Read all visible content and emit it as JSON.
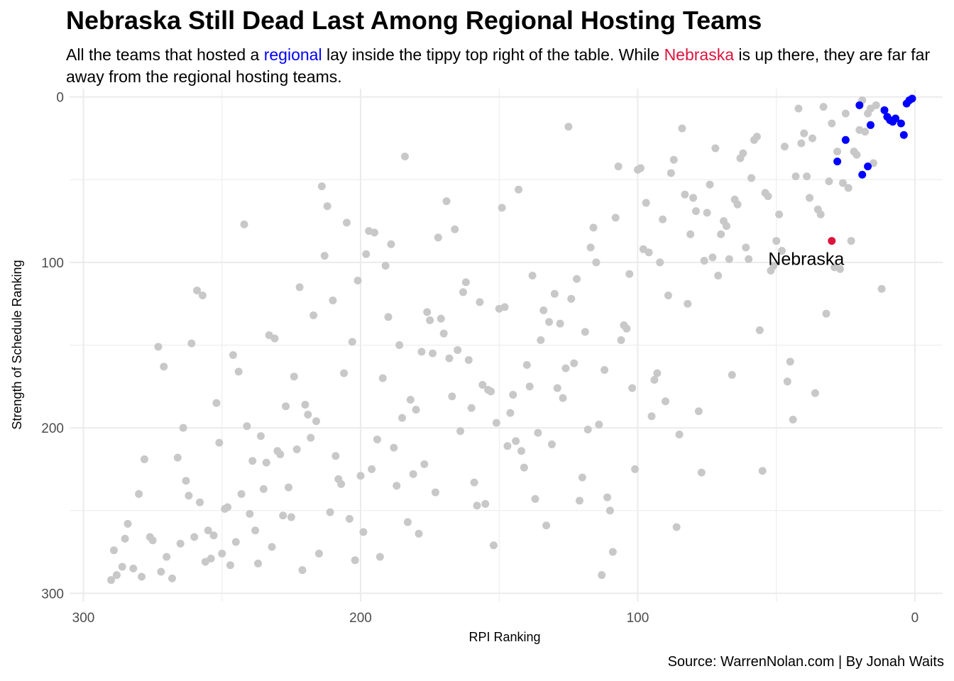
{
  "header": {
    "title": "Nebraska Still Dead Last Among Regional Hosting Teams",
    "subtitle_part1": "All the teams that hosted a ",
    "subtitle_highlight1": "regional",
    "subtitle_part2": " lay inside the tippy top right of the table. While ",
    "subtitle_highlight2": "Nebraska",
    "subtitle_part3": " is up there, they are far far away from the regional hosting teams."
  },
  "caption": "Source: WarrenNolan.com | By Jonah Waits",
  "colors": {
    "other": "#c8c8c8",
    "regional": "#0000ff",
    "nebraska": "#dc143c",
    "grid": "#ebebeb"
  },
  "chart_data": {
    "type": "scatter",
    "xlabel": "RPI Ranking",
    "ylabel": "Strength of Schedule Ranking",
    "x_reversed": true,
    "y_reversed": true,
    "xlim": [
      305,
      -10
    ],
    "ylim": [
      -5,
      305
    ],
    "x_ticks": [
      300,
      200,
      100,
      0
    ],
    "y_ticks": [
      0,
      100,
      200,
      300
    ],
    "grid": true,
    "annotation": {
      "text": "Nebraska",
      "x": 30,
      "y": 87
    },
    "series": [
      {
        "name": "Nebraska",
        "points": [
          [
            30,
            87
          ]
        ]
      },
      {
        "name": "regional",
        "points": [
          [
            1,
            1
          ],
          [
            2,
            2
          ],
          [
            3,
            4
          ],
          [
            5,
            16
          ],
          [
            4,
            23
          ],
          [
            7,
            13
          ],
          [
            8,
            15
          ],
          [
            9,
            14
          ],
          [
            10,
            12
          ],
          [
            11,
            8
          ],
          [
            16,
            17
          ],
          [
            17,
            42
          ],
          [
            19,
            47
          ],
          [
            20,
            5
          ],
          [
            25,
            26
          ],
          [
            28,
            39
          ]
        ]
      },
      {
        "points": [
          [
            290,
            292
          ],
          [
            289,
            274
          ],
          [
            288,
            289
          ],
          [
            286,
            284
          ],
          [
            285,
            267
          ],
          [
            284,
            258
          ],
          [
            282,
            285
          ],
          [
            280,
            240
          ],
          [
            279,
            290
          ],
          [
            278,
            219
          ],
          [
            276,
            266
          ],
          [
            275,
            268
          ],
          [
            273,
            151
          ],
          [
            272,
            287
          ],
          [
            271,
            163
          ],
          [
            270,
            278
          ],
          [
            268,
            291
          ],
          [
            266,
            218
          ],
          [
            265,
            270
          ],
          [
            264,
            200
          ],
          [
            263,
            232
          ],
          [
            262,
            241
          ],
          [
            261,
            149
          ],
          [
            260,
            266
          ],
          [
            259,
            117
          ],
          [
            258,
            245
          ],
          [
            257,
            120
          ],
          [
            256,
            281
          ],
          [
            255,
            262
          ],
          [
            254,
            279
          ],
          [
            253,
            265
          ],
          [
            252,
            185
          ],
          [
            251,
            209
          ],
          [
            250,
            276
          ],
          [
            249,
            249
          ],
          [
            248,
            248
          ],
          [
            247,
            283
          ],
          [
            246,
            156
          ],
          [
            245,
            269
          ],
          [
            244,
            166
          ],
          [
            243,
            240
          ],
          [
            242,
            77
          ],
          [
            241,
            199
          ],
          [
            240,
            252
          ],
          [
            239,
            220
          ],
          [
            238,
            262
          ],
          [
            237,
            282
          ],
          [
            236,
            205
          ],
          [
            235,
            237
          ],
          [
            234,
            221
          ],
          [
            233,
            144
          ],
          [
            232,
            272
          ],
          [
            231,
            146
          ],
          [
            230,
            214
          ],
          [
            229,
            216
          ],
          [
            228,
            253
          ],
          [
            227,
            187
          ],
          [
            226,
            236
          ],
          [
            225,
            254
          ],
          [
            224,
            169
          ],
          [
            223,
            213
          ],
          [
            222,
            115
          ],
          [
            221,
            286
          ],
          [
            220,
            186
          ],
          [
            219,
            192
          ],
          [
            218,
            206
          ],
          [
            217,
            132
          ],
          [
            216,
            196
          ],
          [
            215,
            276
          ],
          [
            214,
            54
          ],
          [
            213,
            96
          ],
          [
            212,
            66
          ],
          [
            211,
            251
          ],
          [
            210,
            123
          ],
          [
            209,
            217
          ],
          [
            208,
            231
          ],
          [
            207,
            234
          ],
          [
            206,
            167
          ],
          [
            205,
            76
          ],
          [
            204,
            255
          ],
          [
            203,
            148
          ],
          [
            202,
            280
          ],
          [
            201,
            111
          ],
          [
            200,
            229
          ],
          [
            199,
            263
          ],
          [
            198,
            95
          ],
          [
            197,
            81
          ],
          [
            196,
            225
          ],
          [
            195,
            82
          ],
          [
            194,
            207
          ],
          [
            193,
            278
          ],
          [
            192,
            170
          ],
          [
            191,
            102
          ],
          [
            190,
            133
          ],
          [
            189,
            89
          ],
          [
            188,
            212
          ],
          [
            187,
            235
          ],
          [
            186,
            150
          ],
          [
            185,
            194
          ],
          [
            184,
            36
          ],
          [
            183,
            257
          ],
          [
            182,
            183
          ],
          [
            181,
            228
          ],
          [
            180,
            189
          ],
          [
            179,
            264
          ],
          [
            178,
            154
          ],
          [
            177,
            222
          ],
          [
            176,
            130
          ],
          [
            175,
            135
          ],
          [
            174,
            155
          ],
          [
            173,
            239
          ],
          [
            172,
            85
          ],
          [
            171,
            134
          ],
          [
            170,
            143
          ],
          [
            169,
            63
          ],
          [
            168,
            158
          ],
          [
            167,
            181
          ],
          [
            166,
            80
          ],
          [
            165,
            153
          ],
          [
            164,
            202
          ],
          [
            163,
            118
          ],
          [
            162,
            112
          ],
          [
            161,
            159
          ],
          [
            160,
            188
          ],
          [
            159,
            233
          ],
          [
            158,
            247
          ],
          [
            157,
            124
          ],
          [
            156,
            174
          ],
          [
            155,
            246
          ],
          [
            154,
            177
          ],
          [
            153,
            178
          ],
          [
            152,
            271
          ],
          [
            151,
            197
          ],
          [
            150,
            128
          ],
          [
            149,
            67
          ],
          [
            148,
            127
          ],
          [
            147,
            211
          ],
          [
            146,
            191
          ],
          [
            145,
            180
          ],
          [
            144,
            208
          ],
          [
            143,
            56
          ],
          [
            142,
            214
          ],
          [
            141,
            224
          ],
          [
            140,
            162
          ],
          [
            139,
            175
          ],
          [
            138,
            108
          ],
          [
            137,
            243
          ],
          [
            136,
            203
          ],
          [
            135,
            147
          ],
          [
            134,
            129
          ],
          [
            133,
            259
          ],
          [
            132,
            136
          ],
          [
            131,
            210
          ],
          [
            130,
            119
          ],
          [
            129,
            176
          ],
          [
            128,
            137
          ],
          [
            127,
            182
          ],
          [
            126,
            164
          ],
          [
            125,
            18
          ],
          [
            124,
            122
          ],
          [
            123,
            161
          ],
          [
            122,
            110
          ],
          [
            121,
            244
          ],
          [
            120,
            230
          ],
          [
            119,
            142
          ],
          [
            118,
            201
          ],
          [
            117,
            91
          ],
          [
            116,
            79
          ],
          [
            115,
            100
          ],
          [
            114,
            198
          ],
          [
            113,
            289
          ],
          [
            112,
            165
          ],
          [
            111,
            242
          ],
          [
            110,
            250
          ],
          [
            109,
            275
          ],
          [
            108,
            73
          ],
          [
            107,
            42
          ],
          [
            106,
            147
          ],
          [
            105,
            138
          ],
          [
            104,
            140
          ],
          [
            103,
            107
          ],
          [
            102,
            176
          ],
          [
            101,
            225
          ],
          [
            100,
            44
          ],
          [
            99,
            43
          ],
          [
            98,
            92
          ],
          [
            97,
            64
          ],
          [
            96,
            94
          ],
          [
            95,
            193
          ],
          [
            94,
            171
          ],
          [
            93,
            167
          ],
          [
            92,
            100
          ],
          [
            91,
            74
          ],
          [
            90,
            184
          ],
          [
            89,
            120
          ],
          [
            88,
            46
          ],
          [
            87,
            38
          ],
          [
            86,
            260
          ],
          [
            85,
            204
          ],
          [
            84,
            19
          ],
          [
            83,
            59
          ],
          [
            82,
            125
          ],
          [
            81,
            83
          ],
          [
            80,
            61
          ],
          [
            79,
            69
          ],
          [
            78,
            190
          ],
          [
            77,
            227
          ],
          [
            76,
            99
          ],
          [
            75,
            70
          ],
          [
            74,
            53
          ],
          [
            73,
            97
          ],
          [
            72,
            31
          ],
          [
            71,
            108
          ],
          [
            70,
            83
          ],
          [
            69,
            75
          ],
          [
            68,
            78
          ],
          [
            67,
            98
          ],
          [
            66,
            168
          ],
          [
            65,
            62
          ],
          [
            64,
            65
          ],
          [
            63,
            37
          ],
          [
            62,
            34
          ],
          [
            61,
            91
          ],
          [
            60,
            98
          ],
          [
            59,
            49
          ],
          [
            58,
            26
          ],
          [
            57,
            24
          ],
          [
            56,
            141
          ],
          [
            55,
            226
          ],
          [
            54,
            58
          ],
          [
            53,
            60
          ],
          [
            52,
            105
          ],
          [
            51,
            102
          ],
          [
            50,
            87
          ],
          [
            49,
            71
          ],
          [
            48,
            93
          ],
          [
            47,
            30
          ],
          [
            46,
            172
          ],
          [
            45,
            160
          ],
          [
            44,
            195
          ],
          [
            43,
            48
          ],
          [
            42,
            7
          ],
          [
            41,
            28
          ],
          [
            40,
            22
          ],
          [
            39,
            48
          ],
          [
            38,
            61
          ],
          [
            37,
            25
          ],
          [
            36,
            179
          ],
          [
            35,
            68
          ],
          [
            34,
            71
          ],
          [
            33,
            6
          ],
          [
            32,
            131
          ],
          [
            31,
            51
          ],
          [
            30,
            16
          ],
          [
            29,
            103
          ],
          [
            28,
            33
          ],
          [
            27,
            104
          ],
          [
            26,
            52
          ],
          [
            25,
            10
          ],
          [
            24,
            55
          ],
          [
            23,
            87
          ],
          [
            22,
            33
          ],
          [
            21,
            35
          ],
          [
            20,
            20
          ],
          [
            19,
            2
          ],
          [
            18,
            21
          ],
          [
            17,
            10
          ],
          [
            16,
            7
          ],
          [
            15,
            40
          ],
          [
            14,
            5
          ],
          [
            12,
            116
          ]
        ]
      }
    ]
  }
}
